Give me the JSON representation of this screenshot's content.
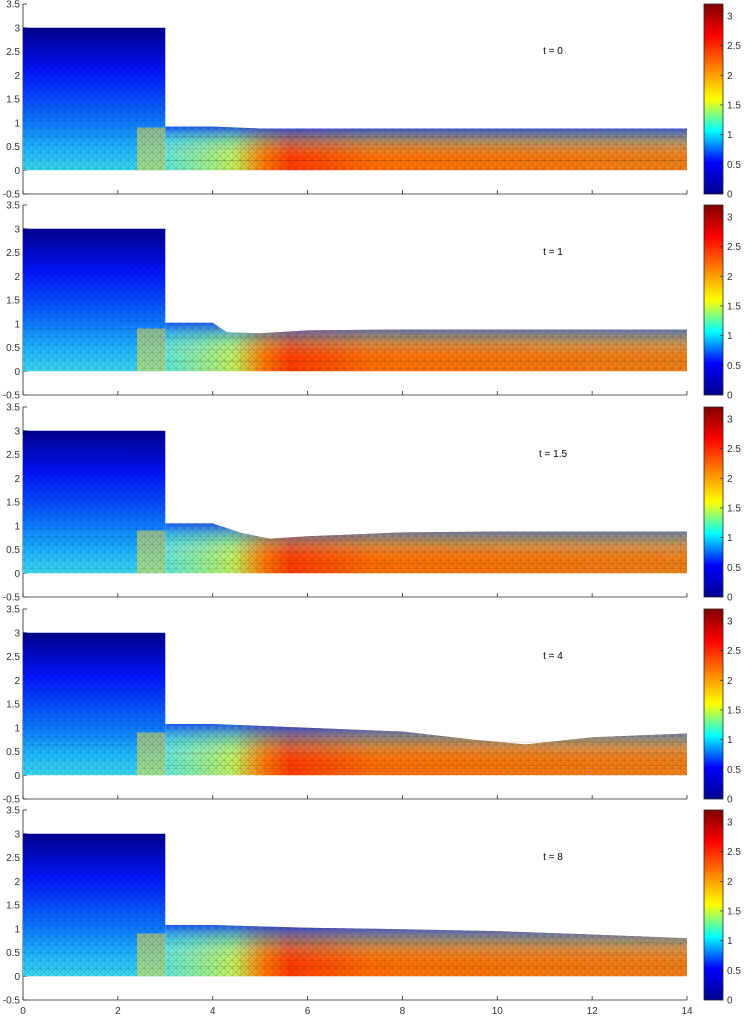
{
  "chart_data": [
    {
      "type": "heatmap",
      "panel": 1,
      "annotation": "t = 0",
      "ylim": [
        -0.5,
        3.5
      ],
      "y_ticks": [
        "-0.5",
        "0",
        "0.5",
        "1",
        "1.5",
        "2",
        "2.5",
        "3",
        "3.5"
      ],
      "x_tick_labels_shown": false,
      "reservoir": {
        "x": [
          0,
          3
        ],
        "surface_height": 3.0
      },
      "channel_surface": {
        "x": [
          3,
          4,
          4.5,
          5,
          6,
          8,
          10,
          12,
          14
        ],
        "h": [
          0.92,
          0.92,
          0.9,
          0.88,
          0.88,
          0.88,
          0.88,
          0.88,
          0.88
        ]
      },
      "colorbar": {
        "range": [
          0,
          3.2
        ],
        "ticks": [
          "0",
          "0.5",
          "1",
          "1.5",
          "2",
          "2.5",
          "3"
        ]
      }
    },
    {
      "type": "heatmap",
      "panel": 2,
      "annotation": "t = 1",
      "ylim": [
        -0.5,
        3.5
      ],
      "y_ticks": [
        "-0.5",
        "0",
        "0.5",
        "1",
        "1.5",
        "2",
        "2.5",
        "3",
        "3.5"
      ],
      "x_tick_labels_shown": false,
      "reservoir": {
        "x": [
          0,
          3
        ],
        "surface_height": 3.0
      },
      "channel_surface": {
        "x": [
          3,
          4,
          4.3,
          5,
          6,
          8,
          10,
          12,
          14
        ],
        "h": [
          1.02,
          1.02,
          0.82,
          0.8,
          0.86,
          0.88,
          0.88,
          0.88,
          0.88
        ]
      },
      "colorbar": {
        "range": [
          0,
          3.2
        ],
        "ticks": [
          "0",
          "0.5",
          "1",
          "1.5",
          "2",
          "2.5",
          "3"
        ]
      }
    },
    {
      "type": "heatmap",
      "panel": 3,
      "annotation": "t = 1.5",
      "ylim": [
        -0.5,
        3.5
      ],
      "y_ticks": [
        "-0.5",
        "0",
        "0.5",
        "1",
        "1.5",
        "2",
        "2.5",
        "3",
        "3.5"
      ],
      "x_tick_labels_shown": false,
      "reservoir": {
        "x": [
          0,
          3
        ],
        "surface_height": 3.0
      },
      "channel_surface": {
        "x": [
          3,
          4,
          4.6,
          5.2,
          6,
          8,
          10,
          12,
          14
        ],
        "h": [
          1.05,
          1.05,
          0.85,
          0.73,
          0.78,
          0.86,
          0.88,
          0.88,
          0.88
        ]
      },
      "colorbar": {
        "range": [
          0,
          3.2
        ],
        "ticks": [
          "0",
          "0.5",
          "1",
          "1.5",
          "2",
          "2.5",
          "3"
        ]
      }
    },
    {
      "type": "heatmap",
      "panel": 4,
      "annotation": "t = 4",
      "ylim": [
        -0.5,
        3.5
      ],
      "y_ticks": [
        "-0.5",
        "0",
        "0.5",
        "1",
        "1.5",
        "2",
        "2.5",
        "3",
        "3.5"
      ],
      "x_tick_labels_shown": false,
      "reservoir": {
        "x": [
          0,
          3
        ],
        "surface_height": 3.0
      },
      "channel_surface": {
        "x": [
          3,
          4,
          6,
          8,
          9.5,
          10.6,
          12,
          14
        ],
        "h": [
          1.08,
          1.08,
          1.0,
          0.92,
          0.75,
          0.65,
          0.8,
          0.88
        ]
      },
      "colorbar": {
        "range": [
          0,
          3.2
        ],
        "ticks": [
          "0",
          "0.5",
          "1",
          "1.5",
          "2",
          "2.5",
          "3"
        ]
      }
    },
    {
      "type": "heatmap",
      "panel": 5,
      "annotation": "t = 8",
      "ylim": [
        -0.5,
        3.5
      ],
      "y_ticks": [
        "-0.5",
        "0",
        "0.5",
        "1",
        "1.5",
        "2",
        "2.5",
        "3",
        "3.5"
      ],
      "x_ticks": [
        "0",
        "2",
        "4",
        "6",
        "8",
        "10",
        "12",
        "14"
      ],
      "x_tick_labels_shown": true,
      "reservoir": {
        "x": [
          0,
          3
        ],
        "surface_height": 3.0
      },
      "channel_surface": {
        "x": [
          3,
          4,
          6,
          8,
          10,
          12,
          14
        ],
        "h": [
          1.08,
          1.08,
          1.02,
          0.99,
          0.95,
          0.88,
          0.8
        ]
      },
      "colorbar": {
        "range": [
          0,
          3.2
        ],
        "ticks": [
          "0",
          "0.5",
          "1",
          "1.5",
          "2",
          "2.5",
          "3"
        ]
      }
    }
  ],
  "xlim": [
    0,
    14
  ],
  "colormap": [
    "#00008f",
    "#0000ff",
    "#00ffff",
    "#ffff00",
    "#ff8000",
    "#ff0000",
    "#800000"
  ]
}
